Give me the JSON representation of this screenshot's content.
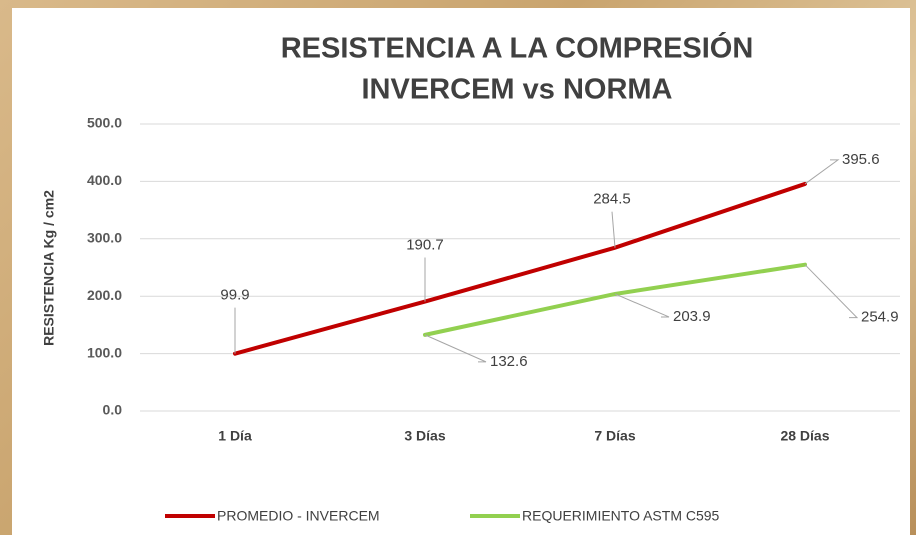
{
  "chart_data": {
    "type": "line",
    "title": [
      "RESISTENCIA A LA COMPRESIÓN",
      "INVERCEM vs NORMA"
    ],
    "y_label": "RESISTENCIA Kg / cm2",
    "categories": [
      "1 Día",
      "3 Días",
      "7 Días",
      "28 Días"
    ],
    "series": [
      {
        "name": "PROMEDIO - INVERCEM",
        "color": "#c00000",
        "values": [
          99.9,
          190.7,
          284.5,
          395.6
        ]
      },
      {
        "name": "REQUERIMIENTO ASTM C595",
        "color": "#92d050",
        "values": [
          null,
          132.6,
          203.9,
          254.9
        ]
      }
    ],
    "ylim": [
      0,
      500
    ],
    "yticks": [
      {
        "value": 0,
        "label": "0.0"
      },
      {
        "value": 100,
        "label": "100.0"
      },
      {
        "value": 200,
        "label": "200.0"
      },
      {
        "value": 300,
        "label": "300.0"
      },
      {
        "value": 400,
        "label": "400.0"
      },
      {
        "value": 500,
        "label": "500.0"
      }
    ],
    "grid": true,
    "legend": "bottom"
  }
}
